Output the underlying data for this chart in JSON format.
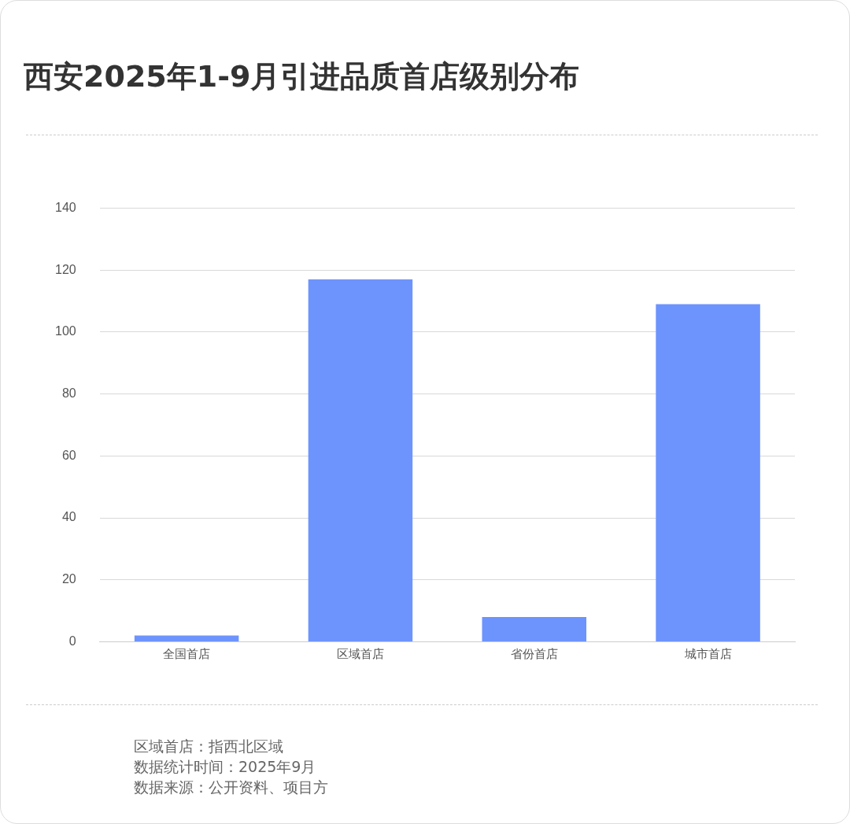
{
  "chart_data": {
    "type": "bar",
    "title": "西安2025年1-9月引进品质首店级别分布",
    "categories": [
      "全国首店",
      "区域首店",
      "省份首店",
      "城市首店"
    ],
    "values": [
      2,
      117,
      8,
      109
    ],
    "color": "#6d93fd",
    "ylim": [
      0,
      140
    ],
    "yticks": [
      0,
      20,
      40,
      60,
      80,
      100,
      120,
      140
    ],
    "grid": "y",
    "legend": false,
    "annotations": [
      "区域首店：指西北区域",
      "数据统计时间：2025年9月",
      "数据来源：公开资料、项目方"
    ]
  }
}
